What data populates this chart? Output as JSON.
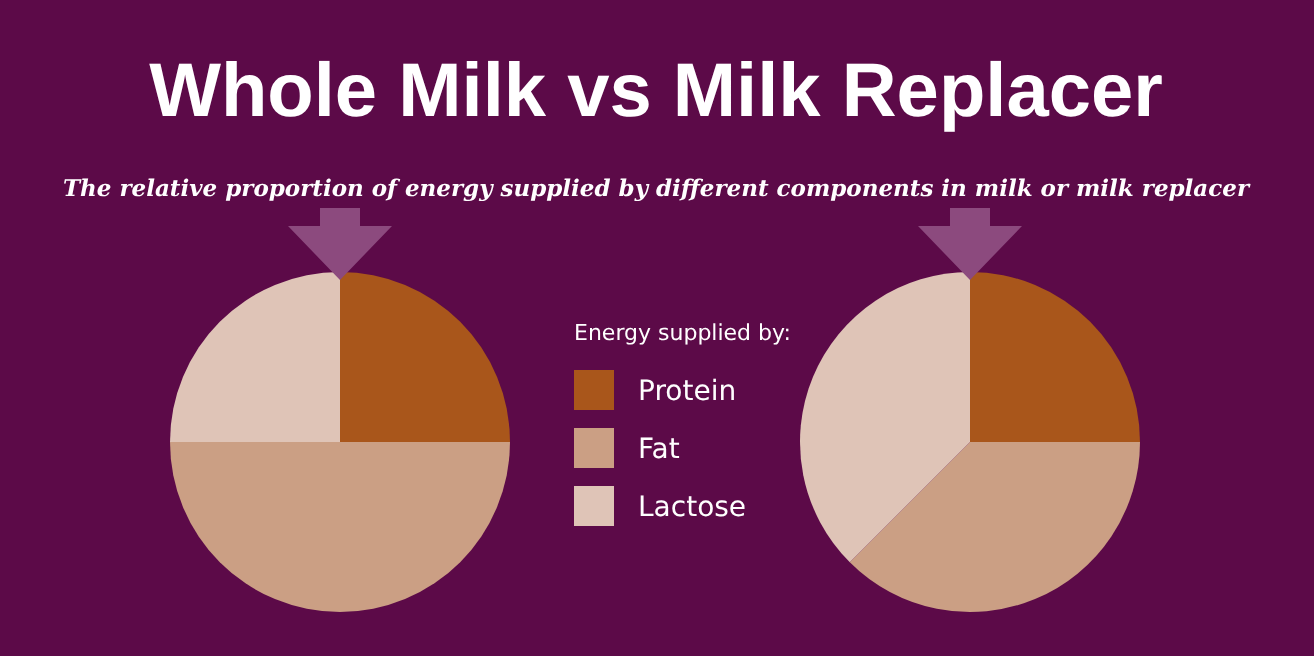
{
  "chart_data": [
    {
      "type": "pie",
      "title": "Whole Milk vs Milk Replacer",
      "subtitle": "The relative proportion of energy supplied by different components in milk or milk replacer",
      "legend_title": "Energy supplied by:",
      "legend": "right",
      "categories": [
        "Protein",
        "Fat",
        "Lactose"
      ],
      "values": [
        25,
        50,
        25
      ],
      "colors": [
        "#a9561b",
        "#cb9f84",
        "#dfc4b7"
      ]
    },
    {
      "type": "pie",
      "categories": [
        null,
        null,
        null
      ],
      "values": [
        25,
        37.5,
        37.5
      ],
      "colors": [
        "#a9561b",
        "#cb9f84",
        "#dfc4b7"
      ]
    }
  ]
}
